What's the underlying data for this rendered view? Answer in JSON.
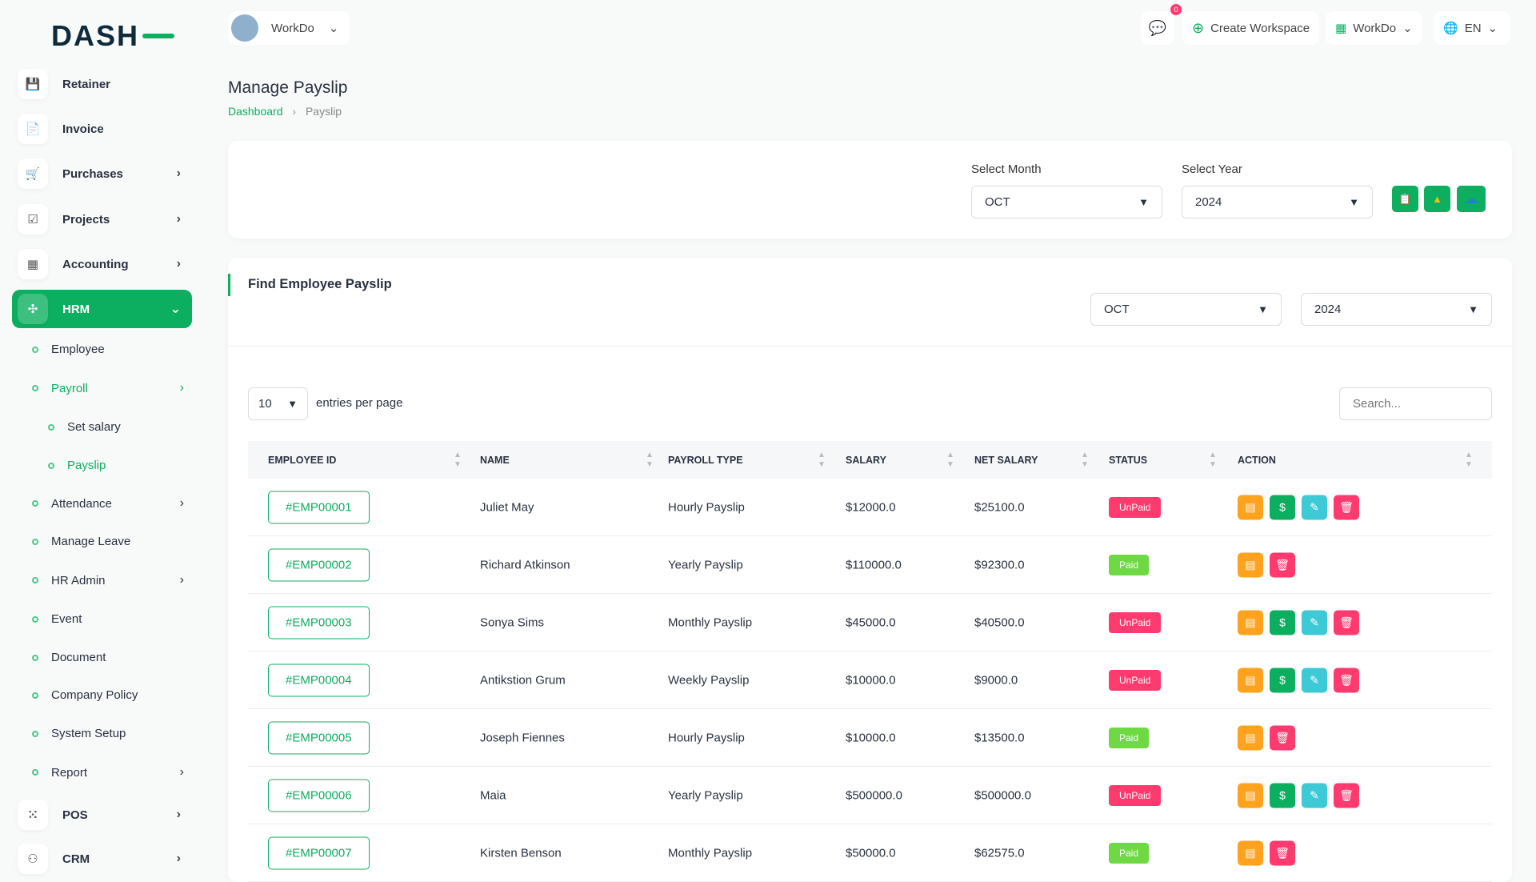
{
  "brand": {
    "logo": "DASH"
  },
  "topbar": {
    "workspace": "WorkDo",
    "notif_count": "0",
    "create_workspace": "Create Workspace",
    "workdo": "WorkDo",
    "lang": "EN"
  },
  "sidebar": {
    "items": [
      {
        "label": "Retainer",
        "icon": "save-icon",
        "chev": false
      },
      {
        "label": "Invoice",
        "icon": "file-icon",
        "chev": false
      },
      {
        "label": "Purchases",
        "icon": "cart-icon",
        "chev": true
      },
      {
        "label": "Projects",
        "icon": "check-square-icon",
        "chev": true
      },
      {
        "label": "Accounting",
        "icon": "grid-icon",
        "chev": true
      },
      {
        "label": "HRM",
        "icon": "hrm-icon",
        "chev": true,
        "active": true
      }
    ],
    "hrm_sub": [
      {
        "label": "Employee"
      },
      {
        "label": "Payroll",
        "chev": true,
        "active": true
      },
      {
        "label": "Set salary",
        "level": 2
      },
      {
        "label": "Payslip",
        "level": 2,
        "active": true
      },
      {
        "label": "Attendance",
        "chev": true
      },
      {
        "label": "Manage Leave"
      },
      {
        "label": "HR Admin",
        "chev": true
      },
      {
        "label": "Event"
      },
      {
        "label": "Document"
      },
      {
        "label": "Company Policy"
      },
      {
        "label": "System Setup"
      },
      {
        "label": "Report",
        "chev": true
      }
    ],
    "bottom": [
      {
        "label": "POS",
        "icon": "dots-grid-icon"
      },
      {
        "label": "CRM",
        "icon": "crm-icon"
      }
    ]
  },
  "page": {
    "title": "Manage Payslip",
    "breadcrumb": [
      "Dashboard",
      "Payslip"
    ]
  },
  "filter": {
    "month_label": "Select Month",
    "month": "OCT",
    "year_label": "Select Year",
    "year": "2024"
  },
  "find": {
    "title": "Find Employee Payslip",
    "month": "OCT",
    "year": "2024"
  },
  "table": {
    "entries": "10",
    "entries_label": "entries per page",
    "search_placeholder": "Search...",
    "headers": [
      "Employee ID",
      "Name",
      "Payroll Type",
      "Salary",
      "Net Salary",
      "Status",
      "Action"
    ],
    "rows": [
      {
        "id": "#EMP00001",
        "name": "Juliet May",
        "type": "Hourly Payslip",
        "salary": "$12000.0",
        "net": "$25100.0",
        "status": "UnPaid"
      },
      {
        "id": "#EMP00002",
        "name": "Richard Atkinson",
        "type": "Yearly Payslip",
        "salary": "$110000.0",
        "net": "$92300.0",
        "status": "Paid"
      },
      {
        "id": "#EMP00003",
        "name": "Sonya Sims",
        "type": "Monthly Payslip",
        "salary": "$45000.0",
        "net": "$40500.0",
        "status": "UnPaid"
      },
      {
        "id": "#EMP00004",
        "name": "Antikstion Grum",
        "type": "Weekly Payslip",
        "salary": "$10000.0",
        "net": "$9000.0",
        "status": "UnPaid"
      },
      {
        "id": "#EMP00005",
        "name": "Joseph Fiennes",
        "type": "Hourly Payslip",
        "salary": "$10000.0",
        "net": "$13500.0",
        "status": "Paid"
      },
      {
        "id": "#EMP00006",
        "name": "Maia",
        "type": "Yearly Payslip",
        "salary": "$500000.0",
        "net": "$500000.0",
        "status": "UnPaid"
      },
      {
        "id": "#EMP00007",
        "name": "Kirsten Benson",
        "type": "Monthly Payslip",
        "salary": "$50000.0",
        "net": "$62575.0",
        "status": "Paid"
      }
    ]
  },
  "colors": {
    "primary": "#0caf60",
    "unpaid": "#ff3a6e",
    "paid": "#6fd943",
    "warning": "#ffa21d",
    "info": "#3ec9d6"
  }
}
